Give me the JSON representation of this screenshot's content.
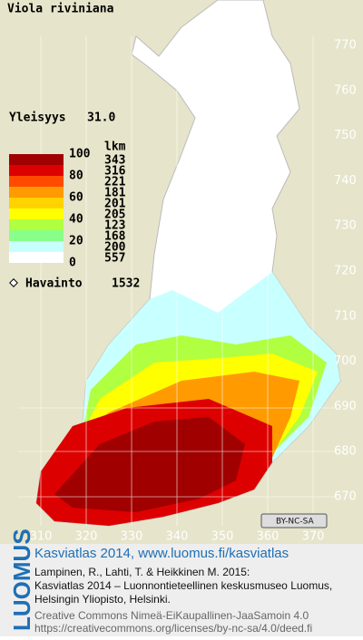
{
  "map": {
    "title": "Viola riviniana",
    "frequency_label": "Yleisyys",
    "frequency_value": "31.0",
    "legend": {
      "count_header": "lkm",
      "scale": [
        100,
        80,
        60,
        40,
        20,
        0
      ],
      "counts": [
        343,
        316,
        221,
        181,
        201,
        205,
        123,
        168,
        200,
        557
      ],
      "colors": [
        "#a00000",
        "#dd0000",
        "#ff4a00",
        "#ff9a00",
        "#ffd200",
        "#ffff00",
        "#b0ff40",
        "#88ff88",
        "#c8ffff",
        "#ffffff"
      ],
      "observation_label": "Havainto",
      "observation_count": 1532
    },
    "y_grid_labels": [
      770,
      760,
      750,
      740,
      730,
      720,
      710,
      700,
      690,
      680,
      670
    ],
    "x_grid_labels": [
      310,
      320,
      330,
      340,
      350,
      360,
      370
    ],
    "license_badge": "BY-NC-SA"
  },
  "footer": {
    "logo": "LUOMUS",
    "headline": "Kasviatlas 2014, www.luomus.fi/kasviatlas",
    "citation": [
      "Lampinen, R., Lahti, T. & Heikkinen M. 2015:",
      "Kasviatlas 2014 – Luonnontieteellinen keskusmuseo Luomus,",
      "Helsingin Yliopisto, Helsinki."
    ],
    "license": [
      "Creative Commons Nimeä-EiKaupallinen-JaaSamoin 4.0",
      "https://creativecommons.org/licenses/by-nc-sa/4.0/deed.fi"
    ]
  }
}
